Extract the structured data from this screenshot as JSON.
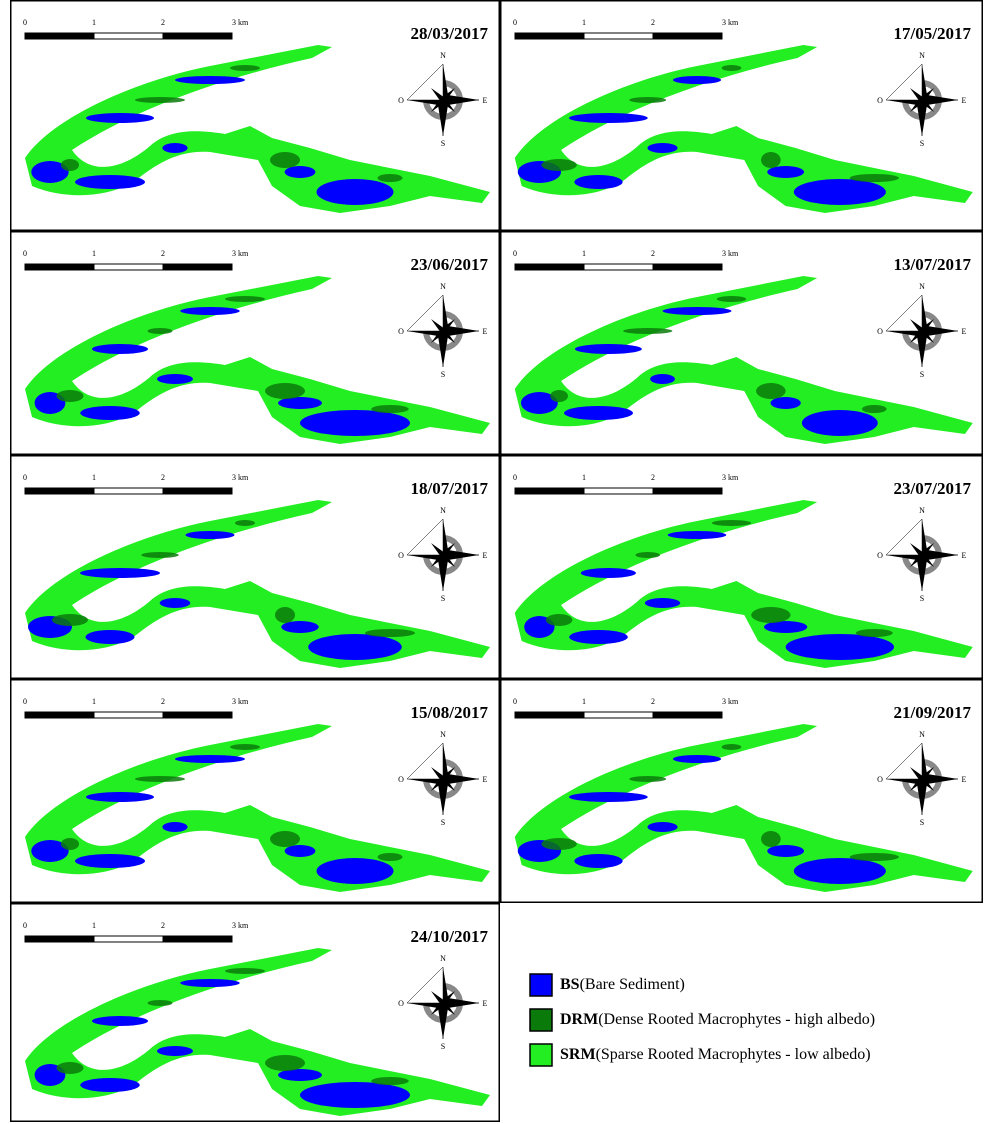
{
  "scale_bar": {
    "labels": [
      "0",
      "1",
      "2",
      "3 km"
    ]
  },
  "compass": {
    "north": "N",
    "west": "O",
    "east": "E",
    "south": "S"
  },
  "panels": [
    {
      "date": "28/03/2017"
    },
    {
      "date": "17/05/2017"
    },
    {
      "date": "23/06/2017"
    },
    {
      "date": "13/07/2017"
    },
    {
      "date": "18/07/2017"
    },
    {
      "date": "23/07/2017"
    },
    {
      "date": "15/08/2017"
    },
    {
      "date": "21/09/2017"
    },
    {
      "date": "24/10/2017"
    }
  ],
  "legend": [
    {
      "code": "BS",
      "description": "(Bare Sediment)",
      "color": "#0000ff"
    },
    {
      "code": "DRM",
      "description": "(Dense Rooted Macrophytes - high albedo)",
      "color": "#0a7a0a"
    },
    {
      "code": "SRM",
      "description": "(Sparse Rooted Macrophytes - low albedo)",
      "color": "#22ee22"
    }
  ]
}
